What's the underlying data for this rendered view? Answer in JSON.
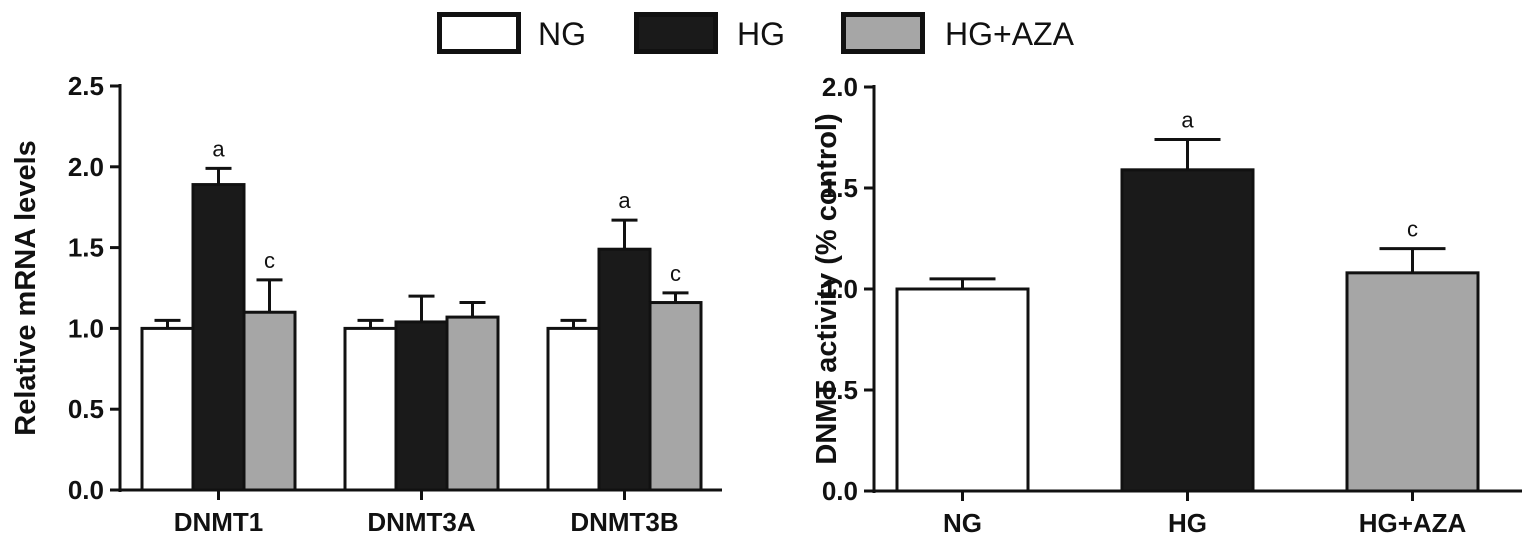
{
  "legend": {
    "entries": [
      {
        "label": "NG",
        "color": "#ffffff"
      },
      {
        "label": "HG",
        "color": "#1a1a1a"
      },
      {
        "label": "HG+AZA",
        "color": "#a6a6a6"
      }
    ]
  },
  "chart_data": [
    {
      "type": "bar",
      "categories": [
        "DNMT1",
        "DNMT3A",
        "DNMT3B"
      ],
      "series": [
        {
          "name": "NG",
          "values": [
            1.0,
            1.0,
            1.0
          ],
          "errors": [
            0.05,
            0.05,
            0.05
          ],
          "color": "#ffffff",
          "annotations": [
            "",
            "",
            ""
          ]
        },
        {
          "name": "HG",
          "values": [
            1.89,
            1.04,
            1.49
          ],
          "errors": [
            0.1,
            0.16,
            0.18
          ],
          "color": "#1a1a1a",
          "annotations": [
            "a",
            "",
            "a"
          ]
        },
        {
          "name": "HG+AZA",
          "values": [
            1.1,
            1.07,
            1.16
          ],
          "errors": [
            0.2,
            0.09,
            0.06
          ],
          "color": "#a6a6a6",
          "annotations": [
            "c",
            "",
            "c"
          ]
        }
      ],
      "ylabel": "Relative mRNA levels",
      "xlabel": "",
      "ylim": [
        0,
        2.5
      ],
      "yticks": [
        "0.0",
        "0.5",
        "1.0",
        "1.5",
        "2.0",
        "2.5"
      ]
    },
    {
      "type": "bar",
      "categories": [
        "NG",
        "HG",
        "HG+AZA"
      ],
      "values": [
        1.0,
        1.59,
        1.08
      ],
      "errors": [
        0.05,
        0.15,
        0.12
      ],
      "colors": [
        "#ffffff",
        "#1a1a1a",
        "#a6a6a6"
      ],
      "annotations": [
        "",
        "a",
        "c"
      ],
      "ylabel": "DNMT activity (% control)",
      "xlabel": "",
      "ylim": [
        0,
        2.0
      ],
      "yticks": [
        "0.0",
        "0.5",
        "1.0",
        "1.5",
        "2.0"
      ]
    }
  ]
}
